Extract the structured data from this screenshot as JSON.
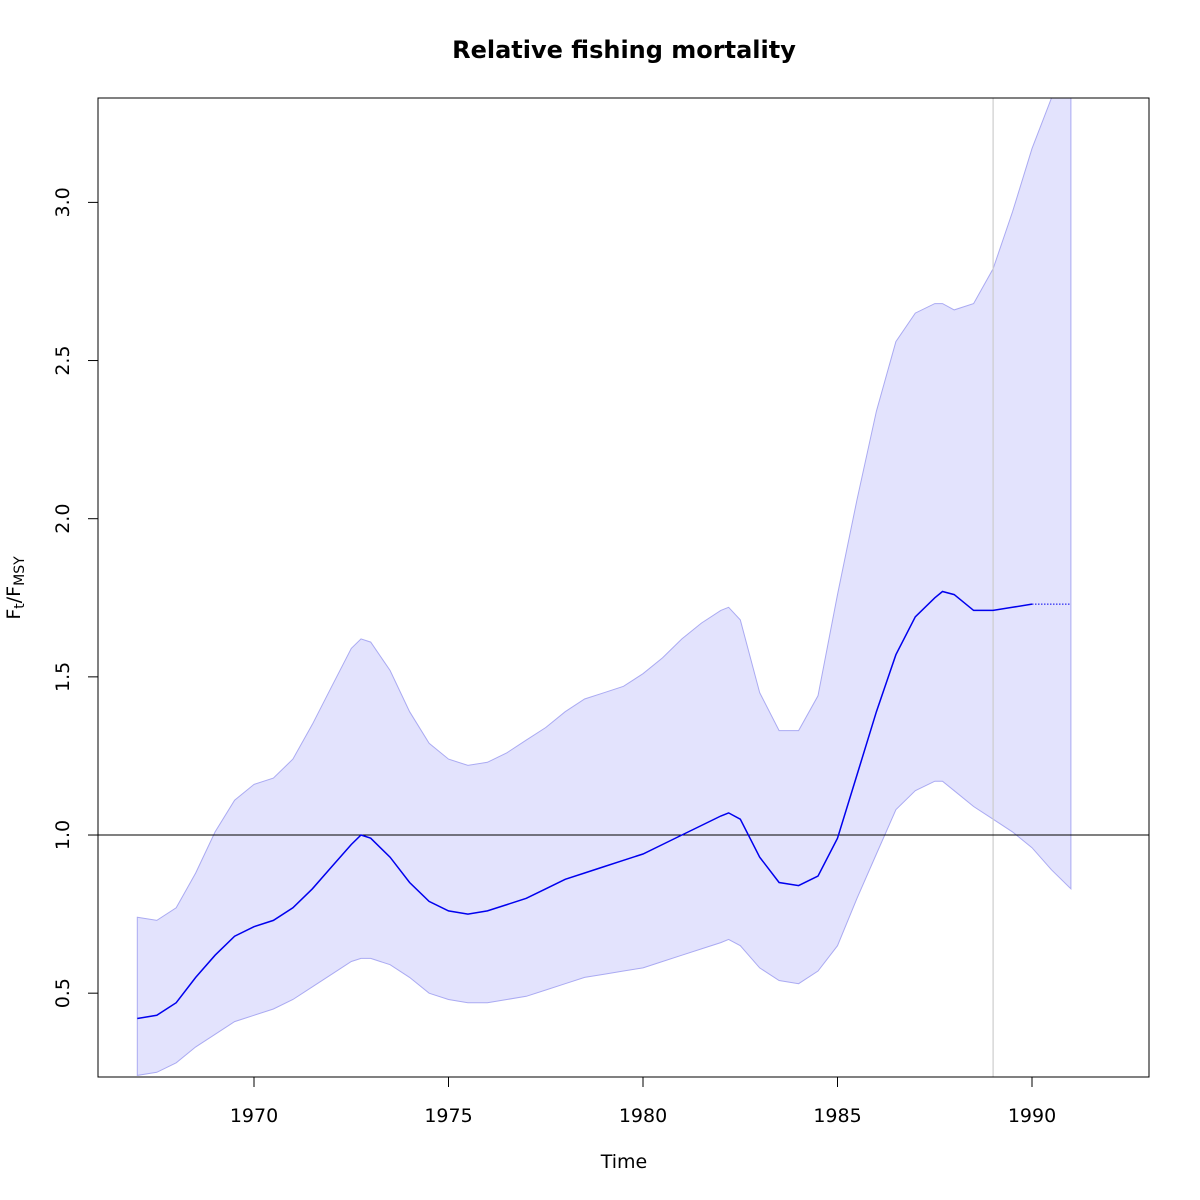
{
  "chart_data": {
    "type": "line",
    "title": "Relative fishing mortality",
    "xlabel": "Time",
    "ylabel": {
      "main": "F",
      "sub1": "t",
      "sep": "/F",
      "sub2": "MSY"
    },
    "xlim": [
      1967,
      1992
    ],
    "ylim": [
      0.235,
      3.33
    ],
    "x_ticks": [
      1970,
      1975,
      1980,
      1985,
      1990
    ],
    "y_ticks": [
      0.5,
      1.0,
      1.5,
      2.0,
      2.5,
      3.0
    ],
    "y_tick_labels": [
      "0.5",
      "1.0",
      "1.5",
      "2.0",
      "2.5",
      "3.0"
    ],
    "reference_hline": 1.0,
    "reference_vline": 1989,
    "grid": false,
    "legend": "none",
    "colors": {
      "estimate_line": "#0000ee",
      "band_fill": "#e3e3fd",
      "band_edge": "#aaaaf2",
      "hline": "#000000",
      "vline": "#cccccc"
    },
    "series": [
      {
        "x": [
          1967.0,
          1967.5,
          1968.0,
          1968.5,
          1969.0,
          1969.5,
          1970.0,
          1970.5,
          1971.0,
          1971.5,
          1972.0,
          1972.5,
          1972.75,
          1973.0,
          1973.5,
          1974.0,
          1974.5,
          1975.0,
          1975.5,
          1976.0,
          1976.5,
          1977.0,
          1977.5,
          1978.0,
          1978.5,
          1979.0,
          1979.5,
          1980.0,
          1980.5,
          1981.0,
          1981.5,
          1982.0,
          1982.2,
          1982.5,
          1983.0,
          1983.5,
          1984.0,
          1984.5,
          1985.0,
          1985.5,
          1986.0,
          1986.5,
          1987.0,
          1987.5,
          1987.7,
          1988.0,
          1988.5,
          1989.0,
          1989.5,
          1990.0
        ],
        "values": [
          0.42,
          0.43,
          0.47,
          0.55,
          0.62,
          0.68,
          0.71,
          0.73,
          0.77,
          0.83,
          0.9,
          0.97,
          1.0,
          0.99,
          0.93,
          0.85,
          0.79,
          0.76,
          0.75,
          0.76,
          0.78,
          0.8,
          0.83,
          0.86,
          0.88,
          0.9,
          0.92,
          0.94,
          0.97,
          1.0,
          1.03,
          1.06,
          1.07,
          1.05,
          0.93,
          0.85,
          0.84,
          0.87,
          0.99,
          1.19,
          1.39,
          1.57,
          1.69,
          1.75,
          1.77,
          1.76,
          1.71,
          1.71,
          1.72,
          1.73
        ]
      },
      {
        "x": [
          1990,
          1991
        ],
        "values": [
          1.73,
          1.73
        ]
      },
      {
        "x": [
          1967.0,
          1967.5,
          1968.0,
          1968.5,
          1969.0,
          1969.5,
          1970.0,
          1970.5,
          1971.0,
          1971.5,
          1972.0,
          1972.5,
          1972.75,
          1973.0,
          1973.5,
          1974.0,
          1974.5,
          1975.0,
          1975.5,
          1976.0,
          1976.5,
          1977.0,
          1977.5,
          1978.0,
          1978.5,
          1979.0,
          1979.5,
          1980.0,
          1980.5,
          1981.0,
          1981.5,
          1982.0,
          1982.2,
          1982.5,
          1983.0,
          1983.5,
          1984.0,
          1984.5,
          1985.0,
          1985.5,
          1986.0,
          1986.5,
          1987.0,
          1987.5,
          1987.7,
          1988.0,
          1988.5,
          1989.0,
          1989.5,
          1990.0,
          1990.5,
          1991.0
        ],
        "values": [
          0.74,
          0.73,
          0.77,
          0.88,
          1.01,
          1.11,
          1.16,
          1.18,
          1.24,
          1.35,
          1.47,
          1.59,
          1.62,
          1.61,
          1.52,
          1.39,
          1.29,
          1.24,
          1.22,
          1.23,
          1.26,
          1.3,
          1.34,
          1.39,
          1.43,
          1.45,
          1.47,
          1.51,
          1.56,
          1.62,
          1.67,
          1.71,
          1.72,
          1.68,
          1.45,
          1.33,
          1.33,
          1.44,
          1.76,
          2.06,
          2.34,
          2.56,
          2.65,
          2.68,
          2.68,
          2.66,
          2.68,
          2.79,
          2.97,
          3.17,
          3.33,
          3.33
        ]
      },
      {
        "x": [
          1967.0,
          1967.5,
          1968.0,
          1968.5,
          1969.0,
          1969.5,
          1970.0,
          1970.5,
          1971.0,
          1971.5,
          1972.0,
          1972.5,
          1972.75,
          1973.0,
          1973.5,
          1974.0,
          1974.5,
          1975.0,
          1975.5,
          1976.0,
          1976.5,
          1977.0,
          1977.5,
          1978.0,
          1978.5,
          1979.0,
          1979.5,
          1980.0,
          1980.5,
          1981.0,
          1981.5,
          1982.0,
          1982.2,
          1982.5,
          1983.0,
          1983.5,
          1984.0,
          1984.5,
          1985.0,
          1985.5,
          1986.0,
          1986.5,
          1987.0,
          1987.5,
          1987.7,
          1988.0,
          1988.5,
          1989.0,
          1989.5,
          1990.0,
          1990.5,
          1991.0
        ],
        "values": [
          0.24,
          0.25,
          0.28,
          0.33,
          0.37,
          0.41,
          0.43,
          0.45,
          0.48,
          0.52,
          0.56,
          0.6,
          0.61,
          0.61,
          0.59,
          0.55,
          0.5,
          0.48,
          0.47,
          0.47,
          0.48,
          0.49,
          0.51,
          0.53,
          0.55,
          0.56,
          0.57,
          0.58,
          0.6,
          0.62,
          0.64,
          0.66,
          0.67,
          0.65,
          0.58,
          0.54,
          0.53,
          0.57,
          0.65,
          0.8,
          0.94,
          1.08,
          1.14,
          1.17,
          1.17,
          1.14,
          1.09,
          1.05,
          1.01,
          0.96,
          0.89,
          0.83
        ]
      }
    ]
  }
}
